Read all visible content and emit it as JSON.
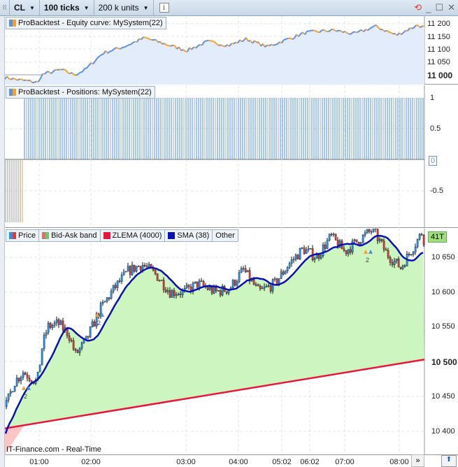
{
  "toolbar": {
    "instrument": "CL",
    "ticks": "100 ticks",
    "units": "200 k units",
    "info": "i"
  },
  "equity_panel": {
    "legend": "ProBacktest - Equity curve: MySystem(22)",
    "axis": [
      "11 200",
      "11 150",
      "11 100",
      "11 050",
      "11 000"
    ]
  },
  "positions_panel": {
    "legend": "ProBacktest - Positions: MySystem(22)",
    "axis": [
      "1",
      "0.5",
      "0",
      "-0.5"
    ]
  },
  "price_panel": {
    "legend": [
      {
        "label": "Price",
        "color": "#e53935"
      },
      {
        "label": "Bid-Ask band",
        "color": "#66cc66"
      },
      {
        "label": "ZLEMA (4000)",
        "color": "#e8163c"
      },
      {
        "label": "SMA (38)",
        "color": "#0a12b4"
      },
      {
        "label": "Other",
        "color": ""
      }
    ],
    "axis": [
      "10 650",
      "10 600",
      "10 550",
      "10 500",
      "10 450",
      "10 400"
    ],
    "volume_badge": "41T",
    "source": "IT-Finance.com - Real-Time",
    "marker_label": "2"
  },
  "time_axis": [
    "01:00",
    "02:00",
    "03:00",
    "04:00",
    "05:02",
    "06:02",
    "07:00",
    "08:00"
  ],
  "more_label": "»",
  "colors": {
    "equity_up": "#5b8ff0",
    "equity_down": "#f5a02a",
    "pos_long": "#4a90e2",
    "sma": "#0a12b4",
    "zlema": "#e8163c",
    "fill_green": "#ccf5c0",
    "fill_red": "#ffc4c4"
  }
}
